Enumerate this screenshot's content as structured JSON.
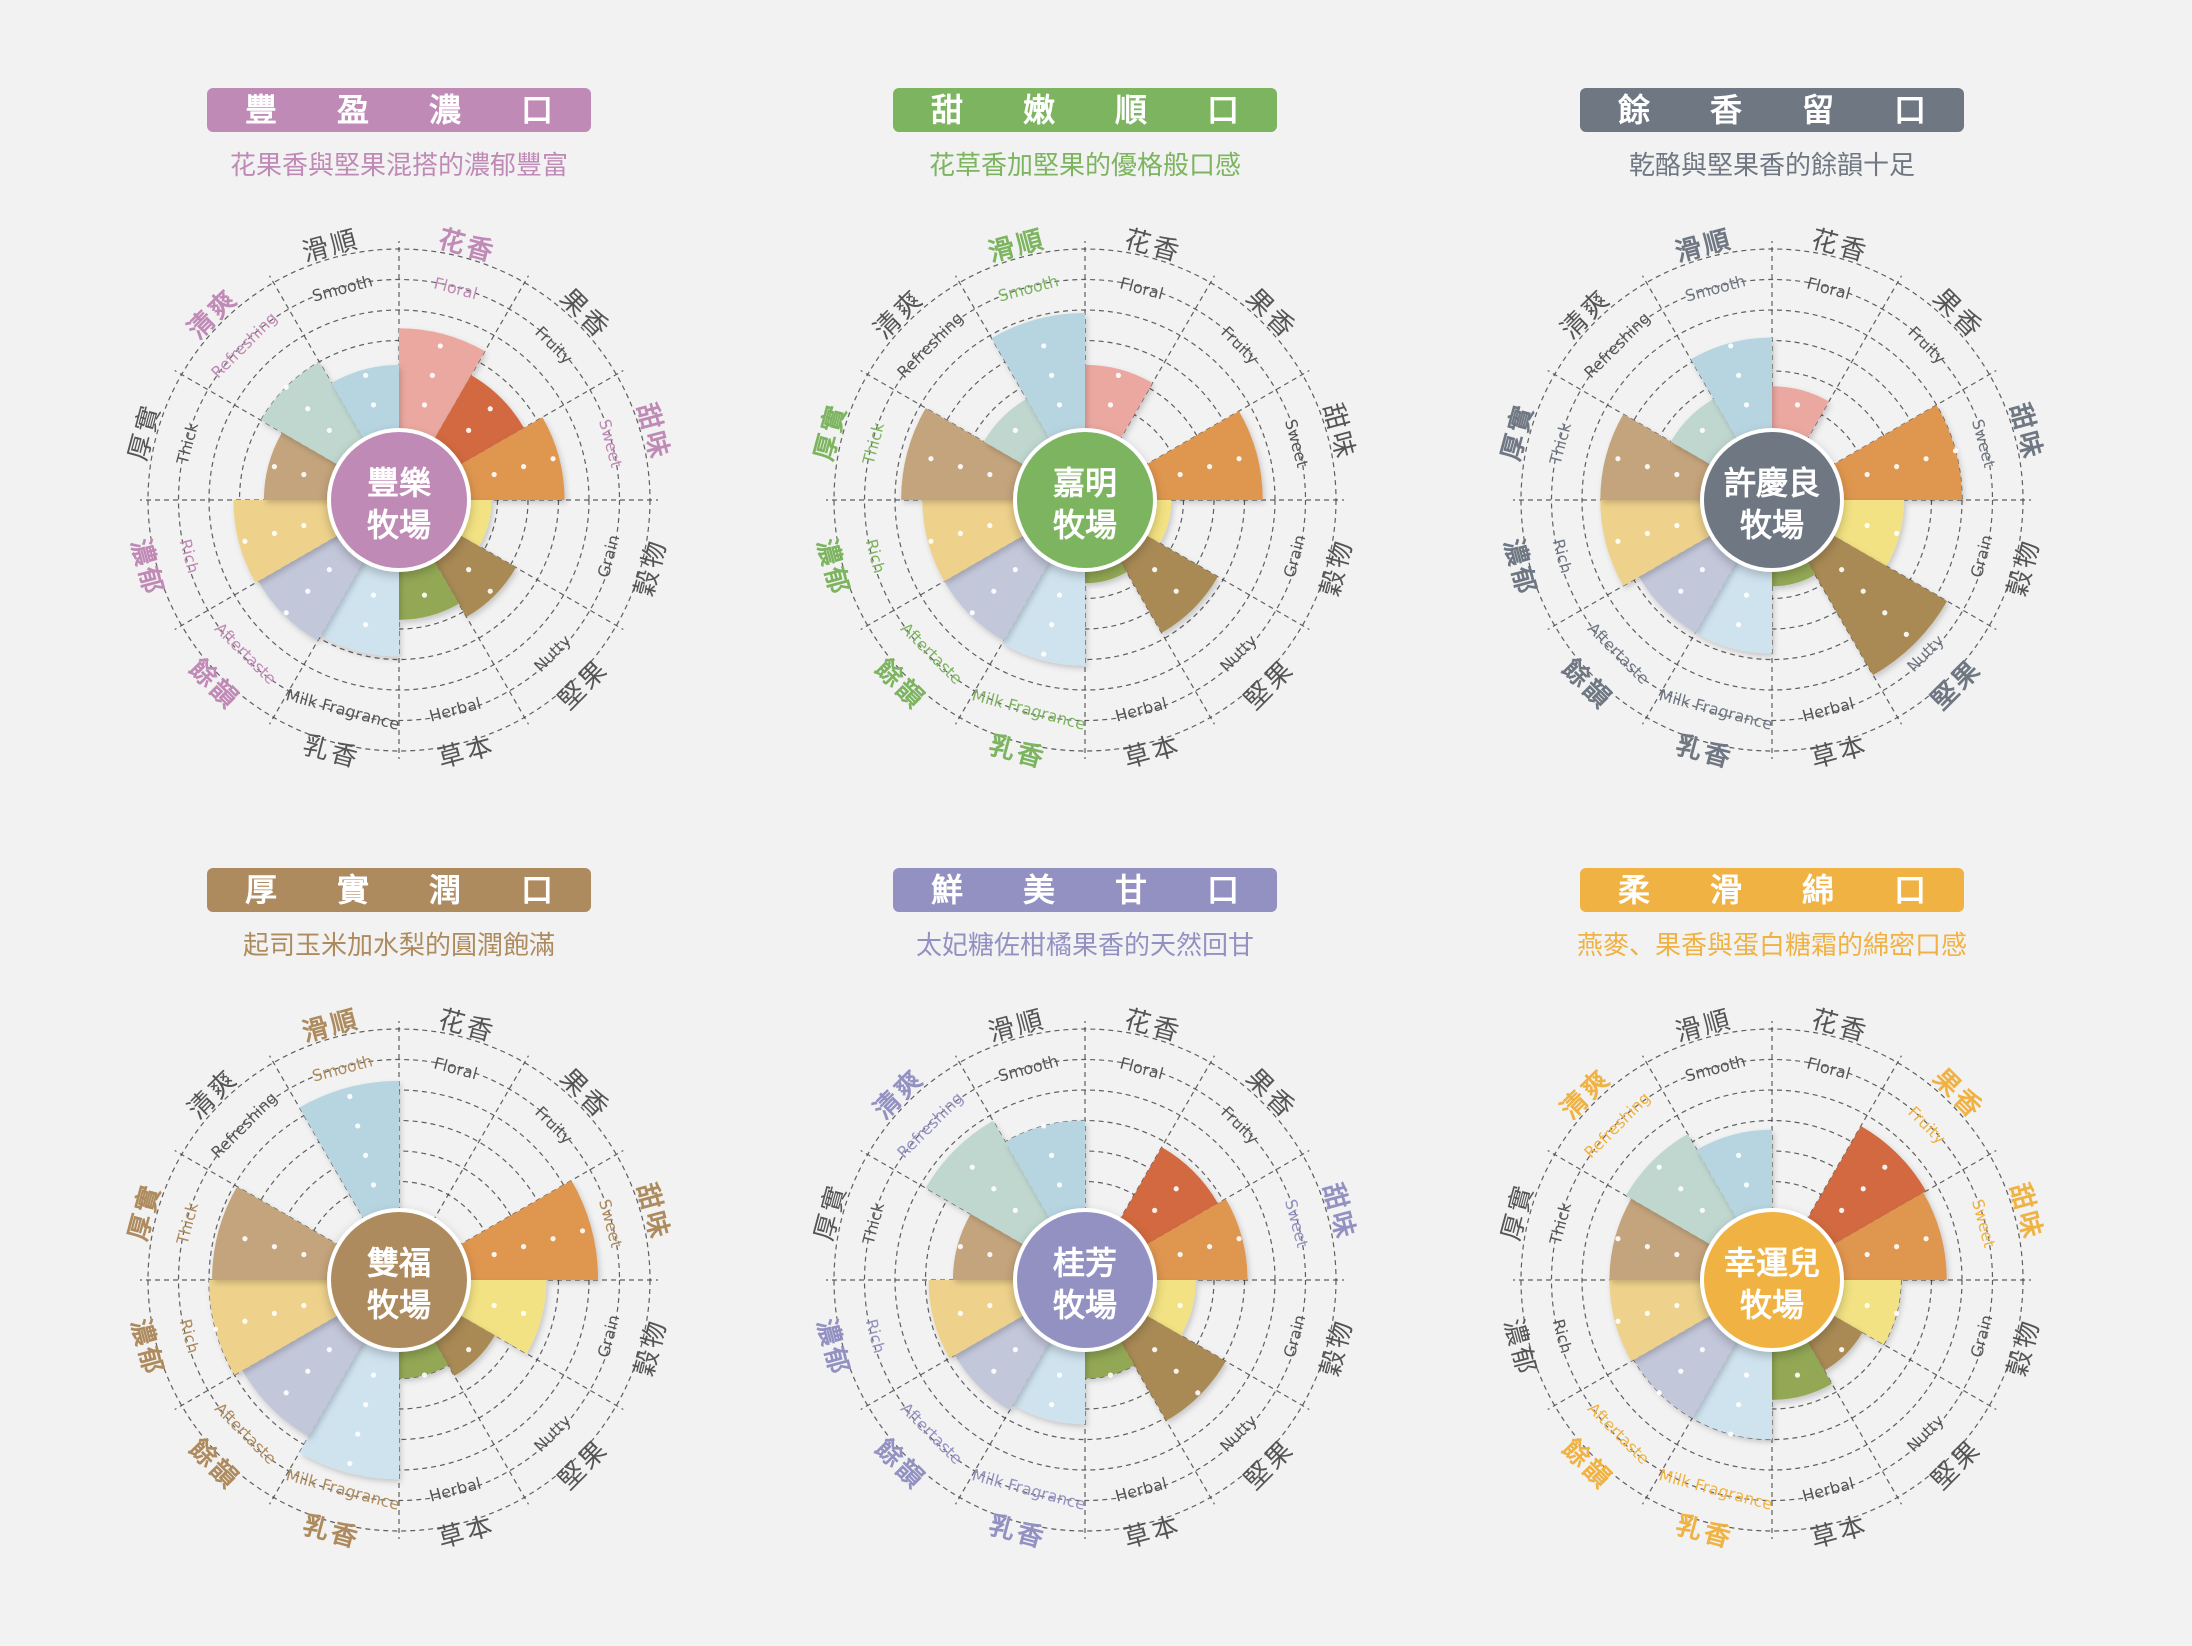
{
  "categories": [
    {
      "zh": "花香",
      "en": "Floral"
    },
    {
      "zh": "果香",
      "en": "Fruity"
    },
    {
      "zh": "甜味",
      "en": "Sweet"
    },
    {
      "zh": "穀物",
      "en": "Grain"
    },
    {
      "zh": "堅果",
      "en": "Nutty"
    },
    {
      "zh": "草本",
      "en": "Herbal"
    },
    {
      "zh": "乳香",
      "en": "Milk Fragrance"
    },
    {
      "zh": "餘韻",
      "en": "Aftertaste"
    },
    {
      "zh": "濃郁",
      "en": "Rich"
    },
    {
      "zh": "厚實",
      "en": "Thick"
    },
    {
      "zh": "清爽",
      "en": "Refreshing"
    },
    {
      "zh": "滑順",
      "en": "Smooth"
    }
  ],
  "colors": {
    "categories": [
      "#eba8a0",
      "#d2693f",
      "#df9650",
      "#f3e283",
      "#a98a55",
      "#93a854",
      "#cfe3ef",
      "#c3c7da",
      "#eed28c",
      "#c4a47c",
      "#bfd7cf",
      "#b7d5e1"
    ],
    "label_default": "#555555",
    "ring": "#3a3a3a"
  },
  "chart_data": [
    {
      "type": "polar-area",
      "title": "豐盈濃口",
      "subtitle": "花果香與堅果混搭的濃郁豐富",
      "center": [
        "豐樂",
        "牧場"
      ],
      "theme": "#c08ab6",
      "rmax": 6,
      "values": [
        3.4,
        2.5,
        3.2,
        0.8,
        2.2,
        1.7,
        2.9,
        3.1,
        3.2,
        2.2,
        3.0,
        2.2
      ],
      "highlight": [
        0,
        2,
        7,
        8,
        10
      ]
    },
    {
      "type": "polar-area",
      "title": "甜嫩順口",
      "subtitle": "花草香加堅果的優格般口感",
      "center": [
        "嘉明",
        "牧場"
      ],
      "theme": "#7cb45f",
      "rmax": 6,
      "values": [
        2.2,
        0.0,
        3.6,
        0.6,
        2.8,
        0.5,
        3.2,
        3.1,
        3.1,
        3.8,
        1.6,
        3.9
      ],
      "highlight": [
        6,
        7,
        8,
        9,
        11
      ]
    },
    {
      "type": "polar-area",
      "title": "餘香留口",
      "subtitle": "乾酪與堅果香的餘韻十足",
      "center": [
        "許慶良",
        "牧場"
      ],
      "theme": "#6f7783",
      "rmax": 6,
      "values": [
        1.5,
        0.0,
        4.0,
        2.1,
        4.4,
        0.6,
        2.8,
        2.8,
        3.4,
        3.4,
        1.6,
        3.1
      ],
      "highlight": [
        2,
        4,
        6,
        7,
        8,
        9,
        11
      ]
    },
    {
      "type": "polar-area",
      "title": "厚實潤口",
      "subtitle": "起司玉米加水梨的圓潤飽滿",
      "center": [
        "雙福",
        "牧場"
      ],
      "theme": "#ae8b5e",
      "rmax": 6,
      "values": [
        0.0,
        0.0,
        4.3,
        2.6,
        1.4,
        1.0,
        4.3,
        3.7,
        4.0,
        3.9,
        0.0,
        4.3
      ],
      "highlight": [
        2,
        6,
        7,
        8,
        9,
        11
      ]
    },
    {
      "type": "polar-area",
      "title": "鮮美甘口",
      "subtitle": "太妃糖佐柑橘果香的天然回甘",
      "center": [
        "桂芳",
        "牧場"
      ],
      "theme": "#9391c2",
      "rmax": 6,
      "values": [
        0.0,
        2.8,
        3.1,
        1.4,
        3.1,
        1.0,
        2.5,
        2.7,
        2.9,
        2.1,
        3.8,
        3.0
      ],
      "highlight": [
        2,
        6,
        7,
        8,
        10
      ]
    },
    {
      "type": "polar-area",
      "title": "柔滑綿口",
      "subtitle": "燕麥、果香與蛋白糖霜的綿密口感",
      "center": [
        "幸運兒",
        "牧場"
      ],
      "theme": "#f0b242",
      "rmax": 6,
      "values": [
        0.0,
        3.6,
        3.5,
        2.0,
        1.2,
        1.7,
        3.0,
        3.0,
        3.1,
        3.1,
        3.3,
        2.7
      ],
      "highlight": [
        1,
        2,
        6,
        7,
        10
      ]
    }
  ]
}
